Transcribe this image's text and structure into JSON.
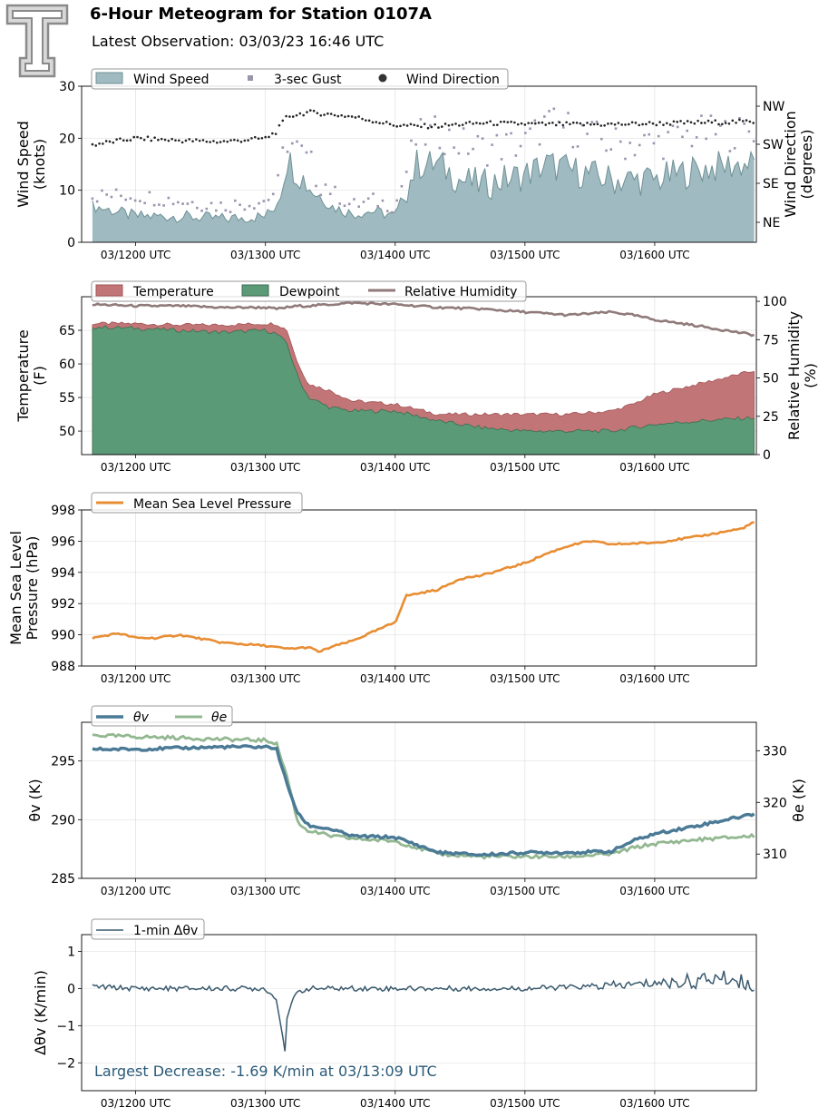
{
  "header": {
    "title": "6-Hour Meteogram for Station 0107A",
    "subtitle": "Latest Observation: 03/03/23 16:46 UTC"
  },
  "x_ticks": [
    "03/1200 UTC",
    "03/1300 UTC",
    "03/1400 UTC",
    "03/1500 UTC",
    "03/1600 UTC"
  ],
  "colors": {
    "wind_fill": "#9fbac0",
    "wind_edge": "#6f9196",
    "gust": "#9a94ad",
    "direction": "#222222",
    "temperature": "#c17577",
    "dewpoint": "#5a9a77",
    "rh": "#907a7a",
    "mslp": "#e88d33",
    "theta_v": "#4a7a95",
    "theta_e": "#93b891",
    "dtheta": "#3a5a6e"
  },
  "chart_data": [
    {
      "type": "area",
      "ylabel": "Wind Speed\n(knots)",
      "y2label": "Wind Direction\n(degrees)",
      "ylim": [
        0,
        30
      ],
      "yticks": [
        "0",
        "10",
        "20",
        "30"
      ],
      "y2ticks": [
        "NW",
        "SW",
        "SE",
        "NE"
      ],
      "legend": [
        "Wind Speed",
        "3-sec Gust",
        "Wind Direction"
      ],
      "x": [
        "11:40",
        "12:00",
        "12:20",
        "12:40",
        "13:00",
        "13:05",
        "13:10",
        "13:20",
        "13:30",
        "13:40",
        "13:50",
        "14:00",
        "14:10",
        "14:20",
        "14:30",
        "14:40",
        "15:00",
        "15:10",
        "15:20",
        "15:40",
        "16:00",
        "16:20",
        "16:40",
        "16:46"
      ],
      "series": [
        {
          "name": "Wind Speed",
          "values": [
            7,
            5,
            5,
            4.5,
            5,
            7,
            16,
            11,
            7,
            5.5,
            6,
            5,
            15,
            15,
            12,
            11,
            13,
            15,
            14,
            12,
            12,
            14,
            15,
            15
          ]
        },
        {
          "name": "3-sec Gust",
          "values": [
            9,
            9,
            8,
            7,
            8,
            10,
            20,
            15,
            10,
            7,
            8,
            7,
            20,
            21,
            19,
            18,
            19,
            23,
            22,
            19,
            19,
            21,
            21,
            22
          ]
        },
        {
          "name": "Wind Direction",
          "values": [
            225,
            240,
            235,
            232,
            240,
            255,
            290,
            300,
            295,
            290,
            280,
            270,
            268,
            268,
            272,
            275,
            273,
            272,
            272,
            272,
            274,
            276,
            278,
            278
          ]
        }
      ]
    },
    {
      "type": "area",
      "ylabel": "Temperature\n(F)",
      "y2label": "Relative Humidity\n(%)",
      "ylim": [
        46.5,
        70
      ],
      "yticks": [
        "50",
        "55",
        "60",
        "65"
      ],
      "y2ticks": [
        "0",
        "25",
        "50",
        "75",
        "100"
      ],
      "legend": [
        "Temperature",
        "Dewpoint",
        "Relative Humidity"
      ],
      "x": [
        "11:40",
        "12:00",
        "12:20",
        "12:40",
        "13:00",
        "13:05",
        "13:10",
        "13:15",
        "13:20",
        "13:30",
        "13:40",
        "14:00",
        "14:20",
        "14:40",
        "15:00",
        "15:20",
        "15:40",
        "15:50",
        "16:00",
        "16:20",
        "16:46"
      ],
      "series": [
        {
          "name": "Temperature",
          "values": [
            66,
            66,
            65.8,
            65.8,
            66,
            66,
            65,
            60,
            57,
            56,
            54.5,
            54,
            52.5,
            52.5,
            52.5,
            52.5,
            53,
            54,
            55.5,
            57,
            59
          ]
        },
        {
          "name": "Dewpoint",
          "values": [
            65.5,
            65.3,
            65,
            64.7,
            65,
            64.5,
            63,
            58,
            55,
            53.5,
            53,
            53,
            51.5,
            50.5,
            50,
            50,
            50,
            50.5,
            51,
            51.5,
            52
          ]
        },
        {
          "name": "Relative Humidity",
          "values": [
            98,
            97,
            97,
            96,
            96,
            95,
            96,
            97,
            97,
            98,
            99,
            98,
            96,
            95,
            93,
            91,
            93,
            91,
            88,
            84,
            78
          ]
        }
      ]
    },
    {
      "type": "line",
      "ylabel": "Mean Sea Level\nPressure (hPa)",
      "ylim": [
        988,
        998
      ],
      "yticks": [
        "988",
        "990",
        "992",
        "994",
        "996",
        "998"
      ],
      "legend": [
        "Mean Sea Level Pressure"
      ],
      "x": [
        "11:40",
        "11:52",
        "12:00",
        "12:10",
        "12:20",
        "12:40",
        "13:00",
        "13:10",
        "13:20",
        "13:25",
        "13:30",
        "13:40",
        "13:50",
        "14:00",
        "14:05",
        "14:20",
        "14:30",
        "14:40",
        "15:00",
        "15:10",
        "15:20",
        "15:30",
        "15:40",
        "16:00",
        "16:20",
        "16:40",
        "16:46"
      ],
      "series": [
        {
          "name": "Mean Sea Level Pressure",
          "values": [
            989.8,
            990.1,
            989.8,
            989.8,
            990,
            989.5,
            989.3,
            989.1,
            989.2,
            988.9,
            989.2,
            989.6,
            990.2,
            990.8,
            992.5,
            992.9,
            993.6,
            993.8,
            994.6,
            995.2,
            995.7,
            996,
            995.8,
            995.9,
            996.3,
            996.8,
            997.2
          ]
        }
      ]
    },
    {
      "type": "line",
      "ylabel": "θv (K)",
      "y2label": "θe (K)",
      "ylim": [
        285,
        298.3
      ],
      "yticks": [
        "285",
        "290",
        "295"
      ],
      "y2ticks": [
        "310",
        "320",
        "330"
      ],
      "legend": [
        "θv",
        "θe"
      ],
      "x": [
        "11:40",
        "12:00",
        "12:20",
        "12:40",
        "13:00",
        "13:05",
        "13:10",
        "13:15",
        "13:20",
        "13:30",
        "13:40",
        "14:00",
        "14:20",
        "14:40",
        "15:00",
        "15:20",
        "15:40",
        "15:50",
        "16:00",
        "16:20",
        "16:46"
      ],
      "series": [
        {
          "name": "θv",
          "values": [
            296,
            296,
            296.1,
            296.2,
            296.2,
            296.1,
            293,
            290.5,
            289.5,
            289.2,
            288.6,
            288.5,
            287.2,
            287,
            287.2,
            287.2,
            287.3,
            288.2,
            288.8,
            289.5,
            290.5
          ]
        },
        {
          "name": "θe",
          "values": [
            333,
            332.7,
            332.5,
            332.2,
            332,
            331.5,
            325,
            316,
            314.5,
            313.5,
            313,
            312.5,
            310,
            309.5,
            309.5,
            309.5,
            310,
            311.2,
            312,
            312.8,
            313.5
          ]
        }
      ]
    },
    {
      "type": "line",
      "ylabel": "Δθv (K/min)",
      "ylim": [
        -2.75,
        1.45
      ],
      "yticks": [
        "−2",
        "−1",
        "0",
        "1"
      ],
      "legend": [
        "1-min Δθv"
      ],
      "annotation": "Largest Decrease: -1.69 K/min at 03/13:09 UTC",
      "x": [
        "11:40",
        "12:00",
        "12:20",
        "12:40",
        "13:00",
        "13:05",
        "13:08",
        "13:09",
        "13:10",
        "13:12",
        "13:15",
        "13:20",
        "13:30",
        "14:00",
        "14:30",
        "15:00",
        "15:30",
        "15:50",
        "16:00",
        "16:20",
        "16:30",
        "16:40",
        "16:46"
      ],
      "series": [
        {
          "name": "1-min Δθv",
          "values": [
            0.05,
            0,
            0,
            0,
            0,
            -0.3,
            -1.3,
            -1.69,
            -0.8,
            -0.4,
            -0.1,
            0,
            0,
            0,
            0,
            0,
            0.05,
            0.1,
            0.15,
            0.2,
            0.3,
            0.2,
            0.05
          ]
        }
      ]
    }
  ]
}
